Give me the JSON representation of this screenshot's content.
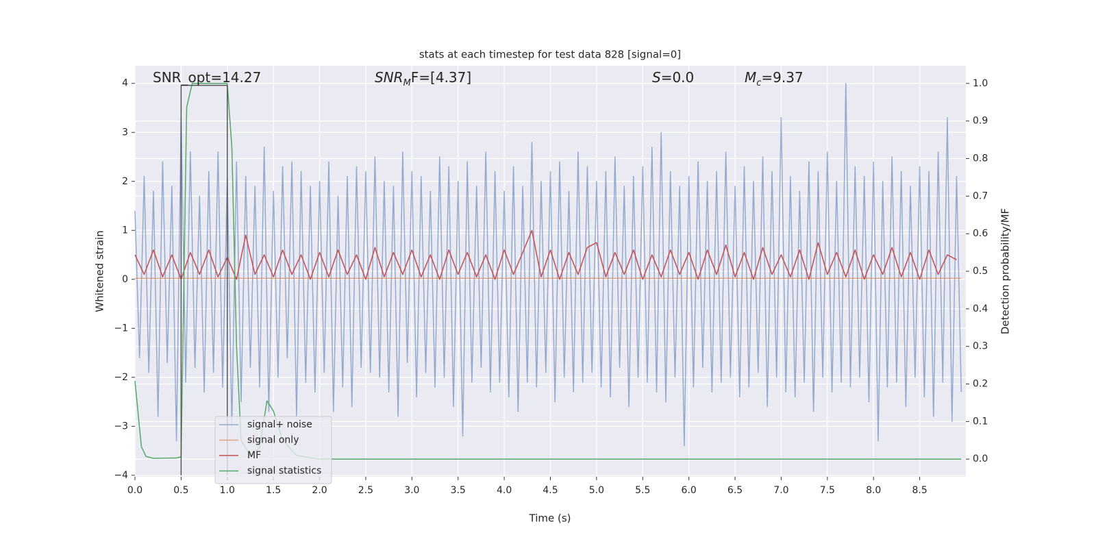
{
  "chart_data": {
    "type": "line",
    "title": "stats at each timestep for test data 828 [signal=0]",
    "xlabel": "Time (s)",
    "ylabel": "Whitened strain",
    "y2label": "Detection probability/MF",
    "xlim": [
      0,
      9.0
    ],
    "xticks": [
      {
        "value": 0,
        "label": "0.0"
      },
      0.5,
      {
        "value": 1,
        "label": "1.0"
      },
      1.5,
      {
        "value": 2,
        "label": "2.0"
      },
      2.5,
      {
        "value": 3,
        "label": "3.0"
      },
      3.5,
      {
        "value": 4,
        "label": "4.0"
      },
      4.5,
      {
        "value": 5,
        "label": "5.0"
      },
      5.5,
      {
        "value": 6,
        "label": "6.0"
      },
      6.5,
      {
        "value": 7,
        "label": "7.0"
      },
      7.5,
      {
        "value": 8,
        "label": "8.0"
      },
      8.5
    ],
    "ylim": [
      -4.03,
      4.36
    ],
    "yticks": [
      {
        "value": -4,
        "label": "−4"
      },
      {
        "value": -3,
        "label": "−3"
      },
      {
        "value": -2,
        "label": "−2"
      },
      {
        "value": -1,
        "label": "−1"
      },
      0,
      1,
      2,
      3,
      4
    ],
    "y2lim": [
      -0.047,
      1.047
    ],
    "y2ticks": [
      {
        "value": 0,
        "label": "0.0"
      },
      0.1,
      0.2,
      0.3,
      0.4,
      0.5,
      0.6,
      0.7,
      0.8,
      0.9,
      {
        "value": 1,
        "label": "1.0"
      }
    ],
    "grid": true,
    "legend": "lower left",
    "background": "#eaeaf2",
    "annotations": [
      {
        "main": "SNR_opt=14.27",
        "italic": false
      },
      {
        "main": "SNR",
        "sub": "M",
        "tail": "F=[4.37]",
        "italic": true
      },
      {
        "main": "S",
        "tail": "=0.0",
        "italic": true
      },
      {
        "main": "M",
        "sub": "c",
        "tail": "=9.37",
        "italic": true
      }
    ],
    "series": [
      {
        "name": "signal+ noise",
        "color": "#4c72b0",
        "opacity": 0.55,
        "x": [
          0,
          0.05,
          0.1,
          0.15,
          0.2,
          0.25,
          0.3,
          0.35,
          0.4,
          0.45,
          0.5,
          0.55,
          0.6,
          0.65,
          0.7,
          0.75,
          0.8,
          0.85,
          0.9,
          0.95,
          1,
          1.05,
          1.1,
          1.15,
          1.2,
          1.25,
          1.3,
          1.35,
          1.4,
          1.45,
          1.5,
          1.55,
          1.6,
          1.65,
          1.7,
          1.75,
          1.8,
          1.85,
          1.9,
          1.95,
          2,
          2.05,
          2.1,
          2.15,
          2.2,
          2.25,
          2.3,
          2.35,
          2.4,
          2.45,
          2.5,
          2.55,
          2.6,
          2.65,
          2.7,
          2.75,
          2.8,
          2.85,
          2.9,
          2.95,
          3,
          3.05,
          3.1,
          3.15,
          3.2,
          3.25,
          3.3,
          3.35,
          3.4,
          3.45,
          3.5,
          3.55,
          3.6,
          3.65,
          3.7,
          3.75,
          3.8,
          3.85,
          3.9,
          3.95,
          4,
          4.05,
          4.1,
          4.15,
          4.2,
          4.25,
          4.3,
          4.35,
          4.4,
          4.45,
          4.5,
          4.55,
          4.6,
          4.65,
          4.7,
          4.75,
          4.8,
          4.85,
          4.9,
          4.95,
          5,
          5.05,
          5.1,
          5.15,
          5.2,
          5.25,
          5.3,
          5.35,
          5.4,
          5.45,
          5.5,
          5.55,
          5.6,
          5.65,
          5.7,
          5.75,
          5.8,
          5.85,
          5.9,
          5.95,
          6,
          6.05,
          6.1,
          6.15,
          6.2,
          6.25,
          6.3,
          6.35,
          6.4,
          6.45,
          6.5,
          6.55,
          6.6,
          6.65,
          6.7,
          6.75,
          6.8,
          6.85,
          6.9,
          6.95,
          7,
          7.05,
          7.1,
          7.15,
          7.2,
          7.25,
          7.3,
          7.35,
          7.4,
          7.45,
          7.5,
          7.55,
          7.6,
          7.65,
          7.7,
          7.75,
          7.8,
          7.85,
          7.9,
          7.95,
          8,
          8.05,
          8.1,
          8.15,
          8.2,
          8.25,
          8.3,
          8.35,
          8.4,
          8.45,
          8.5,
          8.55,
          8.6,
          8.65,
          8.7,
          8.75,
          8.8,
          8.85,
          8.9,
          8.95
        ],
        "values": [
          1.4,
          -1.6,
          2.1,
          -1.9,
          1.8,
          -2.8,
          2.4,
          -1.7,
          1.9,
          -3.3,
          3.3,
          -2.1,
          2.6,
          -1.8,
          1.7,
          -2.3,
          2.2,
          -1.9,
          2.6,
          -2.2,
          2.1,
          -3.0,
          2.4,
          -2.5,
          2.1,
          -1.8,
          1.9,
          -2.2,
          2.7,
          -2.7,
          1.8,
          -2.0,
          2.3,
          -1.6,
          2.4,
          -2.8,
          2.2,
          -2.1,
          1.9,
          -2.3,
          2.0,
          -1.9,
          2.4,
          -2.7,
          1.7,
          -2.2,
          2.1,
          -2.6,
          2.3,
          -1.8,
          2.2,
          -1.9,
          2.5,
          -2.0,
          2.0,
          -2.3,
          1.9,
          -2.8,
          2.6,
          -1.7,
          2.2,
          -2.4,
          2.1,
          -1.9,
          1.8,
          -2.2,
          2.5,
          -2.0,
          2.3,
          -2.6,
          2.0,
          -3.2,
          2.4,
          -2.1,
          1.9,
          -1.8,
          2.6,
          -2.3,
          2.2,
          -2.1,
          1.8,
          -2.4,
          2.3,
          -2.7,
          1.9,
          -2.1,
          2.8,
          -2.2,
          2.0,
          -1.9,
          2.2,
          -2.5,
          2.4,
          -2.0,
          1.8,
          -2.3,
          2.6,
          -2.1,
          2.3,
          -1.9,
          2.0,
          -2.2,
          2.2,
          -2.4,
          2.5,
          -1.8,
          1.9,
          -2.6,
          2.1,
          -2.0,
          2.3,
          -2.1,
          2.7,
          -2.3,
          3.0,
          -2.5,
          2.2,
          -2.0,
          1.9,
          -3.4,
          2.1,
          -2.2,
          2.4,
          -1.8,
          2.0,
          -2.3,
          2.2,
          -2.1,
          2.6,
          -2.0,
          1.9,
          -2.4,
          2.3,
          -2.2,
          2.0,
          -1.9,
          2.5,
          -2.6,
          2.2,
          -2.0,
          3.3,
          -2.3,
          2.1,
          -2.4,
          1.8,
          -2.1,
          2.4,
          -2.7,
          2.2,
          -2.0,
          2.6,
          -2.3,
          2.0,
          -2.1,
          4.0,
          -2.2,
          2.3,
          -2.0,
          2.1,
          -2.5,
          2.4,
          -3.3,
          2.0,
          -2.2,
          2.5,
          -2.1,
          2.2,
          -2.6,
          1.9,
          -2.0,
          2.3,
          -2.4,
          2.2,
          -2.8,
          2.6,
          -2.1,
          3.3,
          -2.9,
          2.1,
          -2.3
        ]
      },
      {
        "name": "signal only",
        "color": "#dd8452",
        "opacity": 0.7,
        "x": [
          0,
          8.95
        ],
        "values": [
          0.02,
          0.02
        ]
      },
      {
        "name": "MF",
        "color": "#c44e52",
        "opacity": 1,
        "x": [
          0,
          0.1,
          0.2,
          0.3,
          0.4,
          0.5,
          0.6,
          0.7,
          0.8,
          0.9,
          1,
          1.1,
          1.2,
          1.3,
          1.4,
          1.5,
          1.6,
          1.7,
          1.8,
          1.9,
          2,
          2.1,
          2.2,
          2.3,
          2.4,
          2.5,
          2.6,
          2.7,
          2.8,
          2.9,
          3,
          3.1,
          3.2,
          3.3,
          3.4,
          3.5,
          3.6,
          3.7,
          3.8,
          3.9,
          4,
          4.1,
          4.2,
          4.3,
          4.4,
          4.5,
          4.6,
          4.7,
          4.8,
          4.9,
          5,
          5.1,
          5.2,
          5.3,
          5.4,
          5.5,
          5.6,
          5.7,
          5.8,
          5.9,
          6,
          6.1,
          6.2,
          6.3,
          6.4,
          6.5,
          6.6,
          6.7,
          6.8,
          6.9,
          7,
          7.1,
          7.2,
          7.3,
          7.4,
          7.5,
          7.6,
          7.7,
          7.8,
          7.9,
          8,
          8.1,
          8.2,
          8.3,
          8.4,
          8.5,
          8.6,
          8.7,
          8.8,
          8.9
        ],
        "values": [
          0.5,
          0.1,
          0.6,
          0.05,
          0.5,
          0.0,
          0.55,
          0.1,
          0.6,
          0.05,
          0.45,
          0.0,
          0.9,
          0.1,
          0.5,
          0.05,
          0.6,
          0.1,
          0.5,
          0.0,
          0.55,
          0.05,
          0.6,
          0.1,
          0.5,
          0.0,
          0.65,
          0.05,
          0.55,
          0.1,
          0.6,
          0.05,
          0.5,
          0.0,
          0.6,
          0.1,
          0.55,
          0.05,
          0.5,
          0.0,
          0.6,
          0.1,
          0.55,
          1.0,
          0.05,
          0.6,
          0.0,
          0.55,
          0.1,
          0.65,
          0.75,
          0.05,
          0.55,
          0.1,
          0.6,
          0.0,
          0.5,
          0.05,
          0.6,
          0.1,
          0.55,
          0.0,
          0.6,
          0.1,
          0.7,
          0.05,
          0.55,
          0.0,
          0.65,
          0.1,
          0.5,
          0.05,
          0.6,
          0.0,
          0.75,
          0.1,
          0.55,
          0.05,
          0.6,
          0.0,
          0.5,
          0.1,
          0.65,
          0.05,
          0.55,
          0.0,
          0.6,
          0.1,
          0.5,
          0.4
        ]
      },
      {
        "name": "signal statistics",
        "color": "#55a868",
        "opacity": 1,
        "axis": "y2",
        "x": [
          0,
          0.07,
          0.12,
          0.2,
          0.45,
          0.5,
          0.56,
          0.62,
          1.0,
          1.05,
          1.1,
          1.15,
          1.25,
          1.35,
          1.43,
          1.5,
          1.6,
          1.75,
          2.0,
          8.95
        ],
        "values": [
          0.208,
          0.033,
          0.007,
          0.002,
          0.003,
          0.006,
          0.936,
          1.0,
          1.0,
          0.83,
          0.3,
          0.05,
          0.01,
          0.03,
          0.155,
          0.128,
          0.05,
          0.01,
          0.0,
          0.0
        ]
      },
      {
        "color": "#555555",
        "opacity": 1,
        "x": [
          0.5,
          0.5,
          1.0,
          1.0
        ],
        "values": [
          -4,
          3.96,
          3.96,
          -4
        ]
      }
    ]
  }
}
